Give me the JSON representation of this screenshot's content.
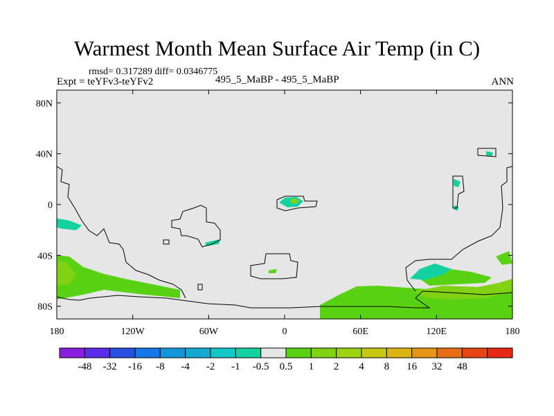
{
  "title": "Warmest Month Mean Surface Air Temp (in C)",
  "stats": "rmsd= 0.317289 diff= 0.0346775",
  "expt": "Expt = teYFv3-teYFv2",
  "center_label": "495_5_MaBP - 495_5_MaBP",
  "season": "ANN",
  "map": {
    "background_color": "#e6e6e6",
    "lon_range": [
      -180,
      180
    ],
    "lat_range": [
      -90,
      90
    ],
    "x_ticks": [
      {
        "lon": -180,
        "label": "180"
      },
      {
        "lon": -120,
        "label": "120W"
      },
      {
        "lon": -60,
        "label": "60W"
      },
      {
        "lon": 0,
        "label": "0"
      },
      {
        "lon": 60,
        "label": "60E"
      },
      {
        "lon": 120,
        "label": "120E"
      },
      {
        "lon": 180,
        "label": "180"
      }
    ],
    "y_ticks": [
      {
        "lat": 80,
        "label": "80N"
      },
      {
        "lat": 40,
        "label": "40N"
      },
      {
        "lat": 0,
        "label": "0"
      },
      {
        "lat": -40,
        "label": "40S"
      },
      {
        "lat": -80,
        "label": "80S"
      }
    ]
  },
  "colorbar": {
    "colors": [
      "#8a1ee0",
      "#5a2de6",
      "#2850e0",
      "#1478e6",
      "#1496dc",
      "#14aad2",
      "#14c8c8",
      "#14d2a0",
      "#e6e6e6",
      "#5ad214",
      "#82d214",
      "#a0d214",
      "#c8c814",
      "#dcb414",
      "#e69614",
      "#e66e14",
      "#e64614",
      "#e62814"
    ],
    "labels": [
      "-48",
      "-32",
      "-16",
      "-8",
      "-4",
      "-2",
      "-1",
      "-0.5",
      "0.5",
      "1",
      "2",
      "4",
      "8",
      "16",
      "32",
      "48"
    ]
  }
}
